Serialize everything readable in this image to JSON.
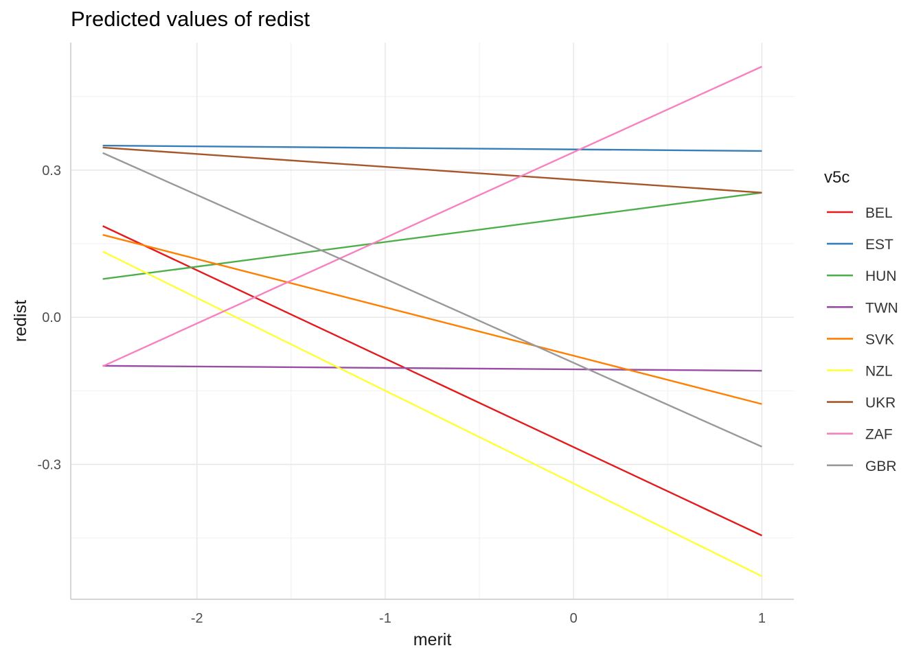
{
  "chart_data": {
    "type": "line",
    "title": "Predicted values of redist",
    "xlabel": "merit",
    "ylabel": "redist",
    "xlim": [
      -2.67,
      1.17
    ],
    "ylim": [
      -0.575,
      0.56
    ],
    "x_ticks": [
      -2,
      -1,
      0,
      1
    ],
    "x_tick_labels": [
      "-2",
      "-1",
      "0",
      "1"
    ],
    "x_minor_ticks": [
      -1.5,
      -0.5,
      0.5
    ],
    "y_ticks": [
      -0.3,
      0.0,
      0.3
    ],
    "y_tick_labels": [
      "-0.3",
      "0.0",
      "0.3"
    ],
    "y_minor_ticks": [
      -0.45,
      -0.15,
      0.15,
      0.45
    ],
    "grid": true,
    "legend": {
      "title": "v5c",
      "position": "right"
    },
    "series": [
      {
        "name": "BEL",
        "color": "#E41A1C",
        "x": [
          -2.5,
          1
        ],
        "y": [
          0.186,
          -0.445
        ]
      },
      {
        "name": "EST",
        "color": "#377EB8",
        "x": [
          -2.5,
          1
        ],
        "y": [
          0.35,
          0.339
        ]
      },
      {
        "name": "HUN",
        "color": "#4DAF4A",
        "x": [
          -2.5,
          1
        ],
        "y": [
          0.078,
          0.254
        ]
      },
      {
        "name": "TWN",
        "color": "#984EA3",
        "x": [
          -2.5,
          1
        ],
        "y": [
          -0.099,
          -0.109
        ]
      },
      {
        "name": "SVK",
        "color": "#FF7F00",
        "x": [
          -2.5,
          1
        ],
        "y": [
          0.168,
          -0.177
        ]
      },
      {
        "name": "NZL",
        "color": "#FFFF33",
        "x": [
          -2.5,
          1
        ],
        "y": [
          0.134,
          -0.528
        ]
      },
      {
        "name": "UKR",
        "color": "#A65628",
        "x": [
          -2.5,
          1
        ],
        "y": [
          0.346,
          0.254
        ]
      },
      {
        "name": "ZAF",
        "color": "#F781BF",
        "x": [
          -2.5,
          1
        ],
        "y": [
          -0.1,
          0.511
        ]
      },
      {
        "name": "GBR",
        "color": "#999999",
        "x": [
          -2.5,
          1
        ],
        "y": [
          0.335,
          -0.264
        ]
      }
    ]
  }
}
